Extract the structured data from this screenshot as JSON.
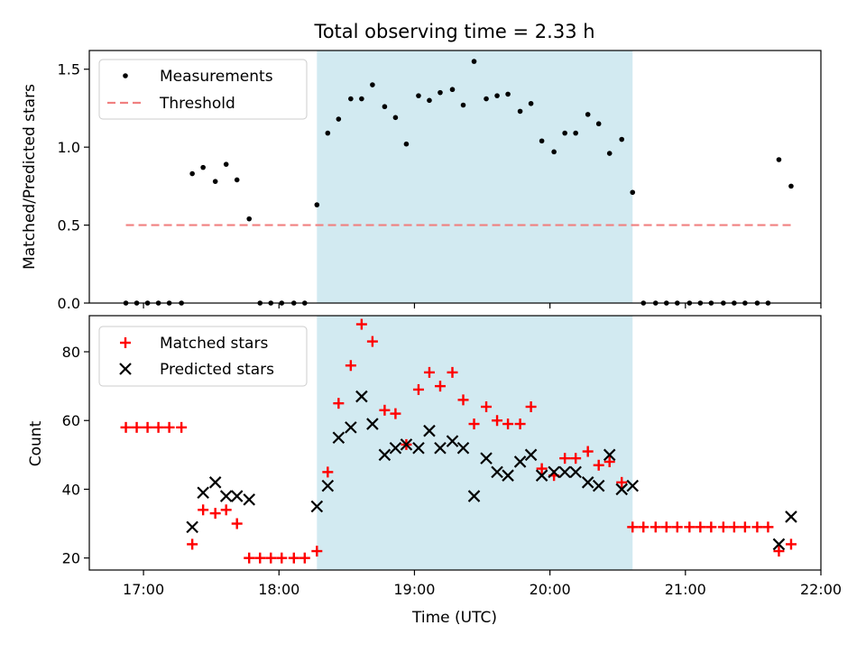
{
  "title": "Total observing time = 2.33 h",
  "chart_data": [
    {
      "type": "scatter",
      "ylabel": "Matched/Predicted stars",
      "ylim": [
        0,
        1.62
      ],
      "yticks": [
        0.0,
        0.5,
        1.0,
        1.5
      ],
      "ytick_labels": [
        "0.0",
        "0.5",
        "1.0",
        "1.5"
      ],
      "xlim": [
        16.6,
        22.0
      ],
      "grid": false,
      "legend_position": "top-left",
      "observing_window": [
        18.28,
        20.61
      ],
      "series": [
        {
          "name": "Measurements",
          "marker": "dot",
          "color": "#000000",
          "x": [
            16.87,
            16.95,
            17.03,
            17.11,
            17.19,
            17.28,
            17.36,
            17.44,
            17.53,
            17.61,
            17.69,
            17.78,
            17.86,
            17.94,
            18.02,
            18.11,
            18.19,
            18.28,
            18.36,
            18.44,
            18.53,
            18.61,
            18.69,
            18.78,
            18.86,
            18.94,
            19.03,
            19.11,
            19.19,
            19.28,
            19.36,
            19.44,
            19.53,
            19.61,
            19.69,
            19.78,
            19.86,
            19.94,
            20.03,
            20.11,
            20.19,
            20.28,
            20.36,
            20.44,
            20.53,
            20.61,
            20.69,
            20.78,
            20.86,
            20.94,
            21.03,
            21.11,
            21.19,
            21.28,
            21.36,
            21.44,
            21.53,
            21.61,
            21.69,
            21.78
          ],
          "y": [
            0,
            0,
            0,
            0,
            0,
            0,
            0.83,
            0.87,
            0.78,
            0.89,
            0.79,
            0.54,
            0,
            0,
            0,
            0,
            0,
            0.63,
            1.09,
            1.18,
            1.31,
            1.31,
            1.4,
            1.26,
            1.19,
            1.02,
            1.33,
            1.3,
            1.35,
            1.37,
            1.27,
            1.55,
            1.31,
            1.33,
            1.34,
            1.23,
            1.28,
            1.04,
            0.97,
            1.09,
            1.09,
            1.21,
            1.15,
            0.96,
            1.05,
            0.71,
            0,
            0,
            0,
            0,
            0,
            0,
            0,
            0,
            0,
            0,
            0,
            0,
            0.92,
            0.75
          ]
        },
        {
          "name": "Threshold",
          "line_style": "dashed",
          "color": "#f08080",
          "x": [
            16.87,
            21.78
          ],
          "y": [
            0.5,
            0.5
          ]
        }
      ]
    },
    {
      "type": "scatter",
      "xlabel": "Time (UTC)",
      "ylabel": "Count",
      "ylim": [
        16.5,
        90.5
      ],
      "yticks": [
        20,
        40,
        60,
        80
      ],
      "ytick_labels": [
        "20",
        "40",
        "60",
        "80"
      ],
      "xlim": [
        16.6,
        22.0
      ],
      "xticks": [
        17,
        18,
        19,
        20,
        21,
        22
      ],
      "xtick_labels": [
        "17:00",
        "18:00",
        "19:00",
        "20:00",
        "21:00",
        "22:00"
      ],
      "grid": false,
      "legend_position": "top-left",
      "observing_window": [
        18.28,
        20.61
      ],
      "series": [
        {
          "name": "Matched stars",
          "marker": "plus",
          "color": "#ff0000",
          "x": [
            16.87,
            16.95,
            17.03,
            17.11,
            17.19,
            17.28,
            17.36,
            17.44,
            17.53,
            17.61,
            17.69,
            17.78,
            17.86,
            17.94,
            18.02,
            18.11,
            18.19,
            18.28,
            18.36,
            18.44,
            18.53,
            18.61,
            18.69,
            18.78,
            18.86,
            18.94,
            19.03,
            19.11,
            19.19,
            19.28,
            19.36,
            19.44,
            19.53,
            19.61,
            19.69,
            19.78,
            19.86,
            19.94,
            20.03,
            20.11,
            20.19,
            20.28,
            20.36,
            20.44,
            20.53,
            20.61,
            20.69,
            20.78,
            20.86,
            20.94,
            21.03,
            21.11,
            21.19,
            21.28,
            21.36,
            21.44,
            21.53,
            21.61,
            21.69,
            21.78
          ],
          "y": [
            58,
            58,
            58,
            58,
            58,
            58,
            24,
            34,
            33,
            34,
            30,
            20,
            20,
            20,
            20,
            20,
            20,
            22,
            45,
            65,
            76,
            88,
            83,
            63,
            62,
            53,
            69,
            74,
            70,
            74,
            66,
            59,
            64,
            60,
            59,
            59,
            64,
            46,
            44,
            49,
            49,
            51,
            47,
            48,
            42,
            29,
            29,
            29,
            29,
            29,
            29,
            29,
            29,
            29,
            29,
            29,
            29,
            29,
            22,
            24
          ]
        },
        {
          "name": "Predicted stars",
          "marker": "x",
          "color": "#000000",
          "x": [
            17.36,
            17.44,
            17.53,
            17.61,
            17.69,
            17.78,
            18.28,
            18.36,
            18.44,
            18.53,
            18.61,
            18.69,
            18.78,
            18.86,
            18.94,
            19.03,
            19.11,
            19.19,
            19.28,
            19.36,
            19.44,
            19.53,
            19.61,
            19.69,
            19.78,
            19.86,
            19.94,
            20.03,
            20.11,
            20.19,
            20.28,
            20.36,
            20.44,
            20.53,
            20.61,
            21.69,
            21.78
          ],
          "y": [
            29,
            39,
            42,
            38,
            38,
            37,
            35,
            41,
            55,
            58,
            67,
            59,
            50,
            52,
            53,
            52,
            57,
            52,
            54,
            52,
            38,
            49,
            45,
            44,
            48,
            50,
            44,
            45,
            45,
            45,
            42,
            41,
            50,
            40,
            41,
            24,
            32
          ]
        }
      ]
    }
  ]
}
